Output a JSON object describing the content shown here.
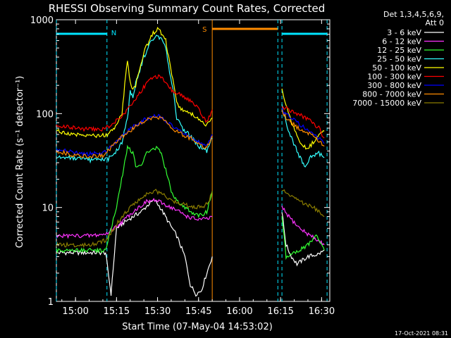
{
  "chart_data": {
    "type": "line",
    "title": "RHESSI Observing Summary Count Rates, Corrected",
    "xlabel": "Start Time (07-May-04 14:53:02)",
    "ylabel": "Corrected Count Rate (s⁻¹ detector⁻¹)",
    "yscale": "log",
    "ylim": [
      1,
      1000
    ],
    "xlim_minutes": [
      893,
      993
    ],
    "x_ticks": [
      {
        "m": 900,
        "label": "15:00"
      },
      {
        "m": 915,
        "label": "15:15"
      },
      {
        "m": 930,
        "label": "15:30"
      },
      {
        "m": 945,
        "label": "15:45"
      },
      {
        "m": 960,
        "label": "16:00"
      },
      {
        "m": 975,
        "label": "16:15"
      },
      {
        "m": 990,
        "label": "16:30"
      }
    ],
    "y_ticks": [
      {
        "v": 1,
        "label": "1"
      },
      {
        "v": 10,
        "label": "10"
      },
      {
        "v": 100,
        "label": "100"
      },
      {
        "v": 1000,
        "label": "1000"
      }
    ],
    "legend_header": [
      "Det 1,3,4,5,6,9,",
      "Att 0"
    ],
    "legend_position": "right",
    "timestamp": "17-Oct-2021 08:31",
    "flags": {
      "night": [
        {
          "label": "N",
          "from": 893,
          "to": 911.5
        },
        {
          "from": 975.5,
          "to": 992
        }
      ],
      "saa": {
        "label": "S",
        "from": 950,
        "to": 974
      }
    },
    "vlines": [
      {
        "m": 893,
        "color": "#00e5ff"
      },
      {
        "m": 911.5,
        "color": "#00e5ff"
      },
      {
        "m": 950,
        "color": "#ff8c00"
      },
      {
        "m": 974,
        "color": "#00e5ff"
      },
      {
        "m": 975.5,
        "color": "#00e5ff"
      },
      {
        "m": 992,
        "color": "#00e5ff"
      }
    ],
    "series": [
      {
        "name": "3 - 6 keV",
        "color": "#ffffff",
        "segments": [
          [
            [
              893,
              3.3
            ],
            [
              911,
              3.3
            ],
            [
              912,
              2
            ],
            [
              913,
              1.2
            ],
            [
              915,
              6
            ],
            [
              918,
              7
            ],
            [
              921,
              8
            ],
            [
              924,
              9
            ],
            [
              927,
              11
            ],
            [
              929,
              12
            ],
            [
              931,
              10
            ],
            [
              934,
              7
            ],
            [
              937,
              5
            ],
            [
              940,
              3
            ],
            [
              942,
              1.5
            ],
            [
              944,
              1.2
            ],
            [
              946,
              1.3
            ],
            [
              948,
              2
            ],
            [
              950,
              3
            ]
          ],
          [
            [
              975.5,
              9
            ],
            [
              977,
              4
            ],
            [
              979,
              3
            ],
            [
              981,
              2.5
            ],
            [
              985,
              3
            ],
            [
              989,
              3.2
            ],
            [
              991,
              3.5
            ]
          ]
        ]
      },
      {
        "name": "6 - 12 keV",
        "color": "#ff33ff",
        "segments": [
          [
            [
              893,
              5
            ],
            [
              905,
              5
            ],
            [
              911,
              5.2
            ],
            [
              914,
              6
            ],
            [
              917,
              7
            ],
            [
              920,
              8.5
            ],
            [
              923,
              10
            ],
            [
              926,
              11.5
            ],
            [
              929,
              12
            ],
            [
              932,
              11
            ],
            [
              935,
              10
            ],
            [
              938,
              9
            ],
            [
              941,
              8
            ],
            [
              944,
              7.5
            ],
            [
              948,
              7.5
            ],
            [
              950,
              8
            ]
          ],
          [
            [
              975.5,
              10
            ],
            [
              978,
              8
            ],
            [
              982,
              6
            ],
            [
              986,
              5
            ],
            [
              991,
              4
            ]
          ]
        ]
      },
      {
        "name": "12 - 25 keV",
        "color": "#33ff33",
        "segments": [
          [
            [
              893,
              3.5
            ],
            [
              908,
              3.5
            ],
            [
              911,
              3.5
            ],
            [
              915,
              10
            ],
            [
              918,
              30
            ],
            [
              919,
              45
            ],
            [
              921,
              38
            ],
            [
              922,
              28
            ],
            [
              924,
              27
            ],
            [
              926,
              38
            ],
            [
              928,
              42
            ],
            [
              930,
              43
            ],
            [
              931,
              40
            ],
            [
              933,
              25
            ],
            [
              935,
              15
            ],
            [
              937,
              12
            ],
            [
              940,
              10
            ],
            [
              945,
              8
            ],
            [
              948,
              9
            ],
            [
              950,
              15
            ]
          ],
          [
            [
              975.5,
              8
            ],
            [
              977,
              3
            ],
            [
              979,
              3.2
            ],
            [
              982,
              3.5
            ],
            [
              985,
              4
            ],
            [
              988,
              5
            ],
            [
              990,
              4
            ],
            [
              991,
              3.5
            ]
          ]
        ]
      },
      {
        "name": "25 - 50 keV",
        "color": "#33ffff",
        "segments": [
          [
            [
              893,
              35
            ],
            [
              900,
              33
            ],
            [
              905,
              32
            ],
            [
              909,
              32
            ],
            [
              912,
              33
            ],
            [
              915,
              40
            ],
            [
              917,
              50
            ],
            [
              919,
              90
            ],
            [
              920,
              170
            ],
            [
              921,
              150
            ],
            [
              922,
              210
            ],
            [
              925,
              400
            ],
            [
              928,
              620
            ],
            [
              930,
              680
            ],
            [
              931,
              640
            ],
            [
              933,
              500
            ],
            [
              934,
              320
            ],
            [
              936,
              160
            ],
            [
              937,
              90
            ],
            [
              939,
              70
            ],
            [
              942,
              58
            ],
            [
              945,
              45
            ],
            [
              948,
              40
            ],
            [
              950,
              55
            ]
          ],
          [
            [
              975.5,
              120
            ],
            [
              977,
              80
            ],
            [
              979,
              55
            ],
            [
              981,
              40
            ],
            [
              983,
              30
            ],
            [
              984,
              28
            ],
            [
              986,
              35
            ],
            [
              989,
              38
            ],
            [
              991,
              34
            ]
          ]
        ]
      },
      {
        "name": "50 - 100 keV",
        "color": "#ffff00",
        "segments": [
          [
            [
              893,
              65
            ],
            [
              900,
              60
            ],
            [
              908,
              58
            ],
            [
              912,
              60
            ],
            [
              915,
              75
            ],
            [
              917,
              100
            ],
            [
              918,
              200
            ],
            [
              919,
              380
            ],
            [
              920,
              210
            ],
            [
              921,
              180
            ],
            [
              922,
              200
            ],
            [
              925,
              450
            ],
            [
              928,
              700
            ],
            [
              930,
              800
            ],
            [
              931,
              760
            ],
            [
              933,
              600
            ],
            [
              934,
              400
            ],
            [
              936,
              200
            ],
            [
              937,
              130
            ],
            [
              939,
              110
            ],
            [
              942,
              100
            ],
            [
              945,
              90
            ],
            [
              948,
              75
            ],
            [
              950,
              90
            ]
          ],
          [
            [
              975.5,
              180
            ],
            [
              977,
              120
            ],
            [
              979,
              80
            ],
            [
              981,
              60
            ],
            [
              983,
              45
            ],
            [
              985,
              42
            ],
            [
              987,
              50
            ],
            [
              989,
              60
            ],
            [
              991,
              65
            ]
          ]
        ]
      },
      {
        "name": "100 - 300 keV",
        "color": "#ff0000",
        "segments": [
          [
            [
              893,
              75
            ],
            [
              900,
              70
            ],
            [
              905,
              68
            ],
            [
              910,
              68
            ],
            [
              913,
              75
            ],
            [
              916,
              90
            ],
            [
              919,
              110
            ],
            [
              921,
              130
            ],
            [
              923,
              160
            ],
            [
              926,
              210
            ],
            [
              928,
              240
            ],
            [
              930,
              250
            ],
            [
              932,
              230
            ],
            [
              934,
              190
            ],
            [
              936,
              170
            ],
            [
              938,
              160
            ],
            [
              940,
              150
            ],
            [
              943,
              130
            ],
            [
              945,
              110
            ],
            [
              947,
              90
            ],
            [
              948,
              80
            ],
            [
              950,
              110
            ]
          ],
          [
            [
              975.5,
              120
            ],
            [
              978,
              110
            ],
            [
              981,
              100
            ],
            [
              984,
              90
            ],
            [
              987,
              80
            ],
            [
              989,
              70
            ],
            [
              991,
              55
            ]
          ]
        ]
      },
      {
        "name": "300 - 800 keV",
        "color": "#0000ff",
        "segments": [
          [
            [
              893,
              42
            ],
            [
              900,
              38
            ],
            [
              905,
              37
            ],
            [
              910,
              38
            ],
            [
              913,
              45
            ],
            [
              916,
              55
            ],
            [
              919,
              65
            ],
            [
              922,
              75
            ],
            [
              925,
              85
            ],
            [
              928,
              92
            ],
            [
              930,
              95
            ],
            [
              932,
              90
            ],
            [
              934,
              80
            ],
            [
              936,
              70
            ],
            [
              938,
              65
            ],
            [
              940,
              60
            ],
            [
              943,
              55
            ],
            [
              945,
              50
            ],
            [
              947,
              46
            ],
            [
              948,
              45
            ],
            [
              950,
              60
            ]
          ],
          [
            [
              975.5,
              110
            ],
            [
              977,
              100
            ],
            [
              979,
              90
            ],
            [
              981,
              80
            ],
            [
              984,
              70
            ],
            [
              987,
              60
            ],
            [
              989,
              55
            ],
            [
              991,
              48
            ]
          ]
        ]
      },
      {
        "name": "800 - 7000 keV",
        "color": "#ff8c00",
        "segments": [
          [
            [
              893,
              40
            ],
            [
              900,
              36
            ],
            [
              905,
              35
            ],
            [
              910,
              36
            ],
            [
              913,
              43
            ],
            [
              916,
              53
            ],
            [
              919,
              63
            ],
            [
              922,
              73
            ],
            [
              925,
              83
            ],
            [
              928,
              90
            ],
            [
              930,
              92
            ],
            [
              932,
              88
            ],
            [
              934,
              78
            ],
            [
              936,
              68
            ],
            [
              938,
              63
            ],
            [
              940,
              58
            ],
            [
              943,
              53
            ],
            [
              945,
              48
            ],
            [
              947,
              44
            ],
            [
              948,
              43
            ],
            [
              950,
              58
            ]
          ],
          [
            [
              975.5,
              105
            ],
            [
              977,
              90
            ],
            [
              979,
              80
            ],
            [
              981,
              72
            ],
            [
              984,
              65
            ],
            [
              987,
              58
            ],
            [
              989,
              52
            ],
            [
              991,
              45
            ]
          ]
        ]
      },
      {
        "name": "7000 - 15000 keV",
        "color": "#8b7d00",
        "segments": [
          [
            [
              893,
              4
            ],
            [
              900,
              4
            ],
            [
              906,
              4
            ],
            [
              911,
              4.5
            ],
            [
              914,
              6
            ],
            [
              917,
              8
            ],
            [
              920,
              10
            ],
            [
              923,
              12
            ],
            [
              926,
              14
            ],
            [
              929,
              15
            ],
            [
              932,
              14
            ],
            [
              935,
              12
            ],
            [
              938,
              11
            ],
            [
              941,
              10.5
            ],
            [
              944,
              10
            ],
            [
              947,
              10.5
            ],
            [
              949,
              12
            ],
            [
              950,
              15
            ]
          ],
          [
            [
              975.5,
              15
            ],
            [
              978,
              14
            ],
            [
              981,
              12
            ],
            [
              984,
              11
            ],
            [
              987,
              10
            ],
            [
              989,
              9
            ],
            [
              991,
              8
            ]
          ]
        ]
      }
    ]
  }
}
